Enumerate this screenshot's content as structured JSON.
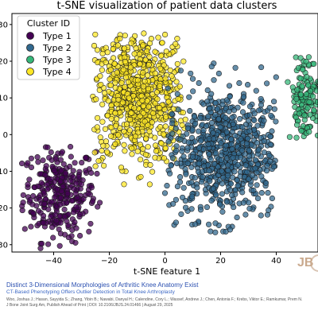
{
  "chart_data": {
    "type": "scatter",
    "title": "t-SNE visualization of patient data clusters",
    "xlabel": "t-SNE feature 1",
    "ylabel": "",
    "xlim": [
      -55,
      55
    ],
    "ylim": [
      -32,
      33
    ],
    "x_ticks": [
      -40,
      -20,
      0,
      20,
      40
    ],
    "y_ticks": [
      -30,
      -20,
      -10,
      0,
      10,
      20,
      30
    ],
    "x_tick_labels": [
      "−40",
      "−20",
      "0",
      "20",
      "40"
    ],
    "y_tick_labels": [
      "30",
      "20",
      "10",
      "0",
      "10",
      "20",
      "30"
    ],
    "grid": false,
    "legend": {
      "title": "Cluster ID",
      "placement": "top-left",
      "entries": [
        "Type 1",
        "Type 2",
        "Type 3",
        "Type 4"
      ]
    },
    "series": [
      {
        "name": "Type 1",
        "color": "#440154",
        "center": [
          -38,
          -16
        ],
        "spread": [
          6.5,
          6.5
        ],
        "count": 300,
        "bounds": [
          -52,
          -22,
          -31,
          -3
        ]
      },
      {
        "name": "Type 2",
        "color": "#31688e",
        "center": [
          22,
          -5
        ],
        "spread": [
          11,
          9
        ],
        "count": 700,
        "bounds": [
          0,
          40,
          -27,
          20
        ]
      },
      {
        "name": "Type 3",
        "color": "#35b779",
        "center": [
          50,
          10
        ],
        "spread": [
          2.8,
          6
        ],
        "count": 130,
        "bounds": [
          44,
          56,
          -1,
          22
        ]
      },
      {
        "name": "Type 4",
        "color": "#fde725",
        "center": [
          -10,
          10
        ],
        "spread": [
          9,
          9
        ],
        "count": 700,
        "bounds": [
          -26,
          8,
          -15,
          28
        ]
      }
    ]
  },
  "caption": {
    "title": "Distinct 3-Dimensional Morphologies of Arthritic Knee Anatomy Exist",
    "subtitle": "CT-Based Phenotyping Offers Outlier Detection in Total Knee Arthroplasty",
    "authors": "Woo, Joshua J.; Hasan, Sayyida S.; Zhang, Yibin B.; Nawabi, Danyal H.; Calendine, Cory L.; Wassef, Andrew J.; Chen, Antonia F.; Krebs, Viktor E.; Ramkumar, Prem N.",
    "journal": "J Bone Joint Surg Am, Publish Ahead of Print | DOI: 10.2106/JBJS.24.01466 | August 29, 2025"
  },
  "logo": {
    "text": "JB"
  }
}
